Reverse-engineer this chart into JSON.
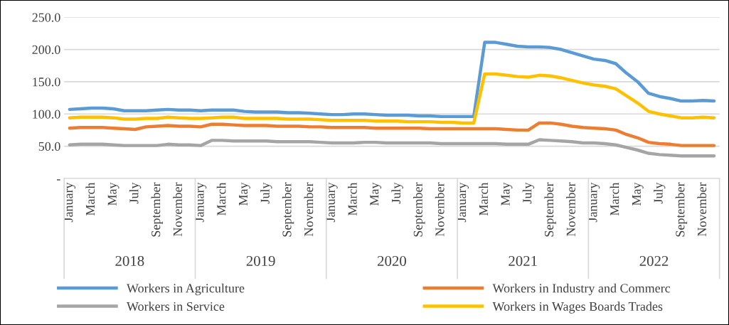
{
  "chart_data": {
    "type": "line",
    "categories": [
      "January",
      null,
      "March",
      null,
      "May",
      null,
      "July",
      null,
      "September",
      null,
      "November",
      null,
      "January",
      null,
      "March",
      null,
      "May",
      null,
      "July",
      null,
      "September",
      null,
      "November",
      null,
      "January",
      null,
      "March",
      null,
      "May",
      null,
      "July",
      null,
      "September",
      null,
      "November",
      null,
      "January",
      null,
      "March",
      null,
      "May",
      null,
      "July",
      null,
      "September",
      null,
      "November",
      null,
      "January",
      null,
      "March",
      null,
      "May",
      null,
      "July",
      null,
      "September",
      null,
      "November",
      null
    ],
    "series": [
      {
        "name": "Workers in Agriculture",
        "color": "#5b9bd5",
        "values": [
          107,
          108,
          109,
          109,
          108,
          105,
          105,
          105,
          106,
          107,
          106,
          106,
          105,
          106,
          106,
          106,
          104,
          103,
          103,
          103,
          102,
          102,
          101,
          100,
          99,
          99,
          100,
          100,
          99,
          98,
          98,
          98,
          97,
          97,
          96,
          96,
          96,
          96,
          211,
          211,
          208,
          205,
          204,
          204,
          203,
          200,
          195,
          190,
          185,
          183,
          178,
          163,
          150,
          132,
          127,
          124,
          120,
          120,
          121,
          120
        ]
      },
      {
        "name": "Workers in Industry and Commerc",
        "color": "#ed7d31",
        "values": [
          78,
          79,
          79,
          79,
          78,
          77,
          76,
          80,
          81,
          82,
          81,
          81,
          80,
          84,
          84,
          83,
          82,
          82,
          82,
          81,
          81,
          81,
          80,
          80,
          79,
          79,
          79,
          79,
          78,
          78,
          78,
          78,
          78,
          77,
          77,
          77,
          77,
          77,
          77,
          77,
          76,
          75,
          75,
          86,
          86,
          84,
          81,
          79,
          78,
          77,
          75,
          68,
          63,
          56,
          54,
          53,
          51,
          51,
          51,
          51
        ]
      },
      {
        "name": "Workers in Service",
        "color": "#a5a5a5",
        "values": [
          52,
          53,
          53,
          53,
          52,
          51,
          51,
          51,
          51,
          53,
          52,
          52,
          51,
          59,
          59,
          58,
          58,
          58,
          58,
          57,
          57,
          57,
          57,
          56,
          55,
          55,
          55,
          56,
          56,
          55,
          55,
          55,
          55,
          55,
          54,
          54,
          54,
          54,
          54,
          54,
          53,
          53,
          53,
          60,
          59,
          58,
          57,
          55,
          55,
          54,
          52,
          48,
          44,
          39,
          37,
          36,
          35,
          35,
          35,
          35
        ]
      },
      {
        "name": "Workers in Wages Boards Trades",
        "color": "#ffc000",
        "values": [
          94,
          95,
          95,
          95,
          94,
          92,
          92,
          93,
          93,
          95,
          94,
          93,
          93,
          94,
          95,
          95,
          93,
          93,
          93,
          93,
          92,
          92,
          92,
          91,
          90,
          90,
          90,
          90,
          89,
          89,
          89,
          88,
          88,
          88,
          87,
          87,
          86,
          86,
          162,
          162,
          160,
          158,
          157,
          160,
          159,
          156,
          152,
          148,
          145,
          143,
          139,
          128,
          117,
          104,
          100,
          97,
          94,
          94,
          95,
          94
        ]
      }
    ],
    "ylim": [
      0,
      250
    ],
    "yticks": [
      {
        "value": 0,
        "label": "-"
      },
      {
        "value": 50,
        "label": "50.0"
      },
      {
        "value": 100,
        "label": "100.0"
      },
      {
        "value": 150,
        "label": "150.0"
      },
      {
        "value": 200,
        "label": "200.0"
      },
      {
        "value": 250,
        "label": "250.0"
      }
    ],
    "grid": "y",
    "legend": "bottom",
    "marker": "none",
    "line_style": "solid",
    "annotations": [
      "2018",
      "2019",
      "2020",
      "2021",
      "2022"
    ]
  }
}
